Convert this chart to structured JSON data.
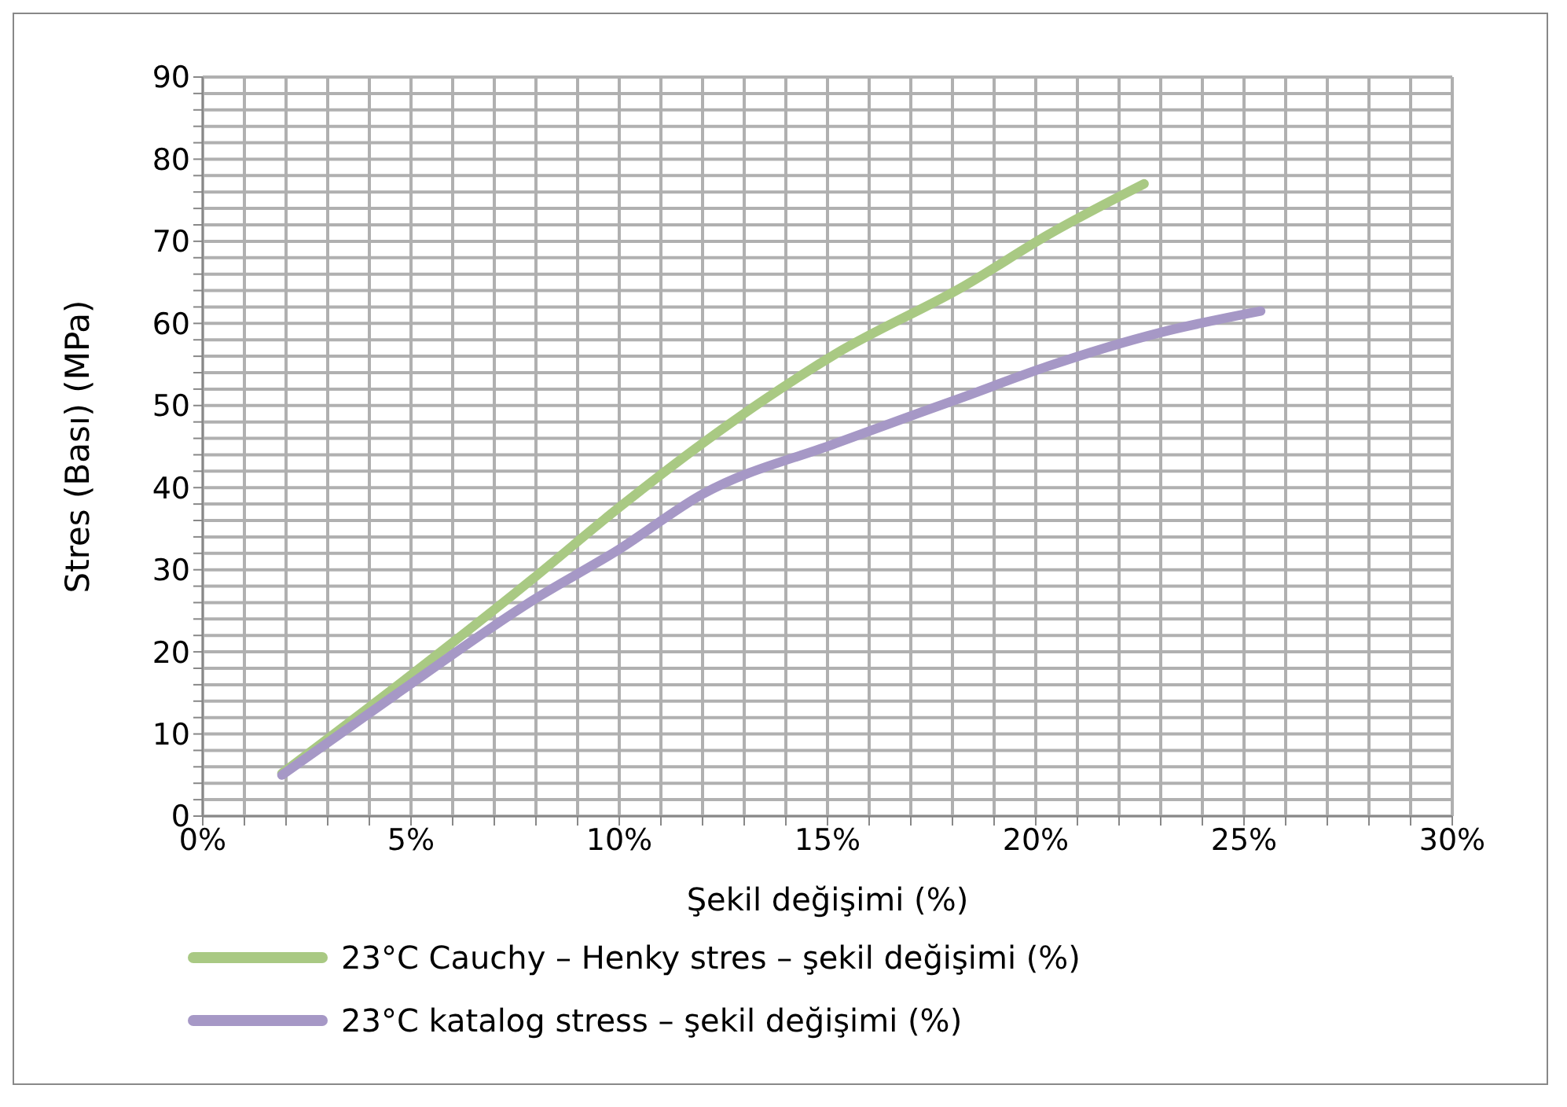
{
  "chart_data": {
    "type": "line",
    "xlabel": "Şekil değişimi (%)",
    "ylabel": "Stres (Bası) (MPa)",
    "xlim": [
      0,
      30
    ],
    "xticks": [
      {
        "value": 0,
        "label": "0%"
      },
      {
        "value": 1,
        "label": null
      },
      {
        "value": 2,
        "label": null
      },
      {
        "value": 3,
        "label": null
      },
      {
        "value": 4,
        "label": null
      },
      {
        "value": 5,
        "label": "5%"
      },
      {
        "value": 6,
        "label": null
      },
      {
        "value": 7,
        "label": null
      },
      {
        "value": 8,
        "label": null
      },
      {
        "value": 9,
        "label": null
      },
      {
        "value": 10,
        "label": "10%"
      },
      {
        "value": 11,
        "label": null
      },
      {
        "value": 12,
        "label": null
      },
      {
        "value": 13,
        "label": null
      },
      {
        "value": 14,
        "label": null
      },
      {
        "value": 15,
        "label": "15%"
      },
      {
        "value": 16,
        "label": null
      },
      {
        "value": 17,
        "label": null
      },
      {
        "value": 18,
        "label": null
      },
      {
        "value": 19,
        "label": null
      },
      {
        "value": 20,
        "label": "20%"
      },
      {
        "value": 21,
        "label": null
      },
      {
        "value": 22,
        "label": null
      },
      {
        "value": 23,
        "label": null
      },
      {
        "value": 24,
        "label": null
      },
      {
        "value": 25,
        "label": "25%"
      },
      {
        "value": 26,
        "label": null
      },
      {
        "value": 27,
        "label": null
      },
      {
        "value": 28,
        "label": null
      },
      {
        "value": 29,
        "label": null
      },
      {
        "value": 30,
        "label": "30%"
      }
    ],
    "ylim": [
      0,
      90
    ],
    "yticks": [
      0,
      {
        "value": 2,
        "label": null
      },
      {
        "value": 4,
        "label": null
      },
      {
        "value": 6,
        "label": null
      },
      {
        "value": 8,
        "label": null
      },
      10,
      {
        "value": 12,
        "label": null
      },
      {
        "value": 14,
        "label": null
      },
      {
        "value": 16,
        "label": null
      },
      {
        "value": 18,
        "label": null
      },
      20,
      {
        "value": 22,
        "label": null
      },
      {
        "value": 24,
        "label": null
      },
      {
        "value": 26,
        "label": null
      },
      {
        "value": 28,
        "label": null
      },
      30,
      {
        "value": 32,
        "label": null
      },
      {
        "value": 34,
        "label": null
      },
      {
        "value": 36,
        "label": null
      },
      {
        "value": 38,
        "label": null
      },
      40,
      {
        "value": 42,
        "label": null
      },
      {
        "value": 44,
        "label": null
      },
      {
        "value": 46,
        "label": null
      },
      {
        "value": 48,
        "label": null
      },
      50,
      {
        "value": 52,
        "label": null
      },
      {
        "value": 54,
        "label": null
      },
      {
        "value": 56,
        "label": null
      },
      {
        "value": 58,
        "label": null
      },
      60,
      {
        "value": 62,
        "label": null
      },
      {
        "value": 64,
        "label": null
      },
      {
        "value": 66,
        "label": null
      },
      {
        "value": 68,
        "label": null
      },
      70,
      {
        "value": 72,
        "label": null
      },
      {
        "value": 74,
        "label": null
      },
      {
        "value": 76,
        "label": null
      },
      {
        "value": 78,
        "label": null
      },
      80,
      {
        "value": 82,
        "label": null
      },
      {
        "value": 84,
        "label": null
      },
      {
        "value": 86,
        "label": null
      },
      {
        "value": 88,
        "label": null
      },
      90
    ],
    "grid": true,
    "legend": "bottom",
    "marker": "none",
    "line_style": "solid",
    "series": [
      {
        "name": "23°C Cauchy – Henky stres – şekil değişimi (%)",
        "color": "#a9c983",
        "x": [
          1.9,
          4.8,
          7.9,
          10,
          12,
          15.2,
          18.3,
          20.3,
          22.6
        ],
        "values": [
          5.2,
          16.4,
          28.8,
          37.6,
          45.4,
          56.3,
          64.6,
          70.8,
          77
        ]
      },
      {
        "name": "23°C katalog stress – şekil değişimi (%)",
        "color": "#a698c6",
        "x": [
          1.9,
          4.8,
          7.9,
          10,
          12,
          15.2,
          18.3,
          20.3,
          23,
          25.4
        ],
        "values": [
          5,
          15.4,
          26.2,
          32.5,
          39.2,
          45.4,
          51.1,
          54.8,
          58.9,
          61.5
        ]
      }
    ]
  }
}
